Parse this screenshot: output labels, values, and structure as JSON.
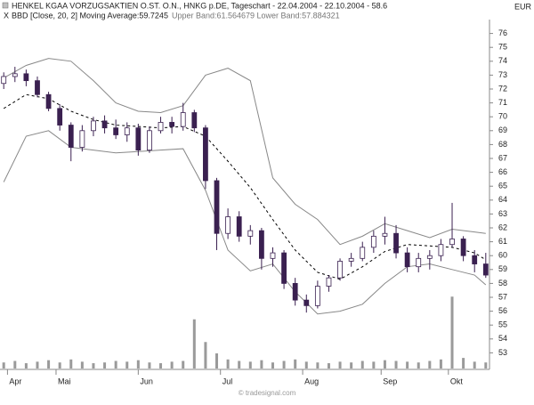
{
  "chart_data": {
    "type": "candlestick",
    "title": "HENKEL KGAA VORZUGSAKTIEN O.ST. O.N., HNKG p.DE, Tageschart - 22.04.2004 - 22.10.2004 - 58.6",
    "subtitle": "BBD [Close, 20, 2] Moving Average:59.7245",
    "subtitle_bands": "Upper Band:61.564679 Lower Band:57.884321",
    "currency": "EUR",
    "watermark": "© tradesignal.com",
    "x": [
      0,
      3,
      6,
      9,
      12,
      15,
      18,
      21,
      24,
      27,
      30,
      33,
      36,
      39,
      42,
      45,
      48,
      51,
      54,
      57,
      60,
      63,
      66,
      69,
      72,
      75,
      78,
      81,
      84,
      87,
      90,
      93,
      96,
      99,
      102,
      105,
      108,
      111,
      114,
      117,
      120,
      123,
      126,
      129
    ],
    "open": [
      72.4,
      72.9,
      73.1,
      72.6,
      71.6,
      70.6,
      69.4,
      67.8,
      69.0,
      69.7,
      69.2,
      68.7,
      69.2,
      67.6,
      69.0,
      69.6,
      69.3,
      70.3,
      69.2,
      65.4,
      61.6,
      62.8,
      61.4,
      61.8,
      59.8,
      60.2,
      58.0,
      56.8,
      56.4,
      57.8,
      58.4,
      59.6,
      59.8,
      60.6,
      61.4,
      61.6,
      60.2,
      59.2,
      59.8,
      60.0,
      60.8,
      61.2,
      60.0,
      59.4
    ],
    "high": [
      73.2,
      73.6,
      73.4,
      72.9,
      71.8,
      70.9,
      69.6,
      69.4,
      70.0,
      70.1,
      69.8,
      69.6,
      69.5,
      69.3,
      70.0,
      70.0,
      71.0,
      70.5,
      69.4,
      65.6,
      63.4,
      63.2,
      62.2,
      62.0,
      60.6,
      60.4,
      58.4,
      57.2,
      58.2,
      58.6,
      59.8,
      60.2,
      61.0,
      61.8,
      62.8,
      62.2,
      60.6,
      60.2,
      60.4,
      61.2,
      63.8,
      61.4,
      60.4,
      60.2
    ],
    "low": [
      72.0,
      72.5,
      72.2,
      71.4,
      70.4,
      69.0,
      66.8,
      67.5,
      68.6,
      68.8,
      68.4,
      68.2,
      67.2,
      67.4,
      68.8,
      68.8,
      69.0,
      68.9,
      64.8,
      60.4,
      61.2,
      61.0,
      60.8,
      59.0,
      59.2,
      57.6,
      56.4,
      55.9,
      56.2,
      57.4,
      58.2,
      59.2,
      59.6,
      60.2,
      60.8,
      59.8,
      58.8,
      58.8,
      59.0,
      59.6,
      60.6,
      59.6,
      58.8,
      58.4
    ],
    "close": [
      72.9,
      73.1,
      72.6,
      71.6,
      70.6,
      69.4,
      67.8,
      69.0,
      69.7,
      69.2,
      68.7,
      69.2,
      67.6,
      69.0,
      69.6,
      69.3,
      70.3,
      69.2,
      65.4,
      61.6,
      62.8,
      61.4,
      61.8,
      59.8,
      60.2,
      58.0,
      56.8,
      56.4,
      57.8,
      58.4,
      59.6,
      59.8,
      60.6,
      61.4,
      61.6,
      60.2,
      59.2,
      59.8,
      60.0,
      60.8,
      61.2,
      60.0,
      59.4,
      58.6
    ],
    "volume": [
      8,
      10,
      7,
      9,
      11,
      8,
      12,
      9,
      7,
      8,
      10,
      9,
      11,
      8,
      7,
      9,
      10,
      65,
      35,
      20,
      12,
      10,
      9,
      11,
      8,
      10,
      12,
      9,
      8,
      7,
      9,
      8,
      10,
      9,
      11,
      10,
      9,
      8,
      10,
      12,
      95,
      14,
      9,
      8
    ],
    "volume_lim": [
      0,
      100
    ],
    "up_color": "#ffffff",
    "down_color": "#3a2050",
    "bands": {
      "x": [
        0,
        6,
        12,
        18,
        24,
        30,
        36,
        42,
        48,
        54,
        60,
        66,
        72,
        78,
        84,
        90,
        96,
        102,
        108,
        114,
        120,
        126,
        129
      ],
      "upper": [
        72.8,
        73.7,
        74.2,
        74.0,
        72.6,
        71.0,
        70.4,
        70.3,
        70.8,
        73.0,
        73.5,
        72.6,
        65.6,
        63.7,
        62.6,
        60.8,
        61.4,
        62.3,
        61.8,
        61.3,
        61.9,
        61.7,
        61.6
      ],
      "ma": [
        70.6,
        71.6,
        71.3,
        70.4,
        69.8,
        69.4,
        69.3,
        69.2,
        69.3,
        68.6,
        66.8,
        64.9,
        62.6,
        60.4,
        58.8,
        58.3,
        59.2,
        60.3,
        60.8,
        60.7,
        60.6,
        60.2,
        59.7
      ],
      "lower": [
        65.3,
        68.6,
        69.0,
        67.8,
        67.6,
        67.4,
        67.5,
        67.6,
        67.7,
        64.7,
        60.4,
        58.9,
        59.4,
        57.4,
        55.8,
        56.0,
        56.5,
        58.0,
        59.2,
        59.4,
        59.0,
        58.6,
        57.9
      ],
      "color": "#888888"
    },
    "xlim": [
      -1,
      130
    ],
    "xticks": [
      {
        "value": 1,
        "label": "Apr"
      },
      {
        "value": 14,
        "label": "Mai"
      },
      {
        "value": 36,
        "label": "Jun"
      },
      {
        "value": 58,
        "label": "Jul"
      },
      {
        "value": 80,
        "label": "Aug"
      },
      {
        "value": 101,
        "label": "Sep"
      },
      {
        "value": 119,
        "label": "Okt"
      }
    ],
    "ylim": [
      52,
      77
    ],
    "yticks": [
      53,
      54,
      55,
      56,
      57,
      58,
      59,
      60,
      61,
      62,
      63,
      64,
      65,
      66,
      67,
      68,
      69,
      70,
      71,
      72,
      73,
      74,
      75,
      76
    ]
  }
}
